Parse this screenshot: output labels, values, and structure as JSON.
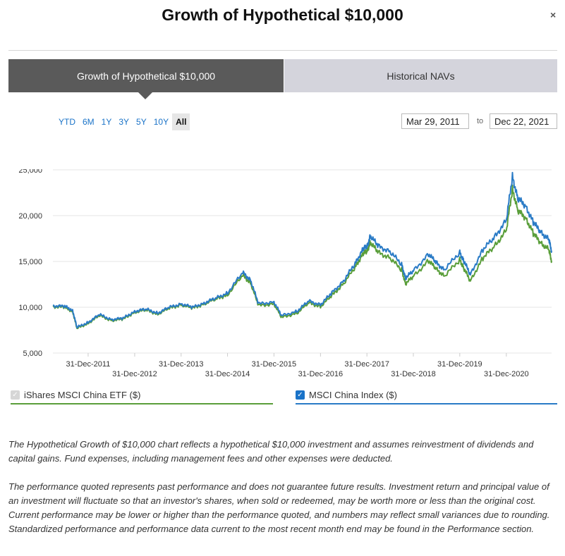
{
  "header": {
    "title": "Growth of Hypothetical $10,000",
    "close_label": "×"
  },
  "tabs": [
    {
      "label": "Growth of Hypothetical $10,000",
      "active": true
    },
    {
      "label": "Historical NAVs",
      "active": false
    }
  ],
  "time_ranges": [
    "YTD",
    "6M",
    "1Y",
    "3Y",
    "5Y",
    "10Y",
    "All"
  ],
  "selected_range": "All",
  "date_range": {
    "start": "Mar 29, 2011",
    "to_label": "to",
    "end": "Dec 22, 2021"
  },
  "legend": [
    {
      "label": "iShares MSCI China ETF ($)",
      "checked": true,
      "color": "#5a9e3a"
    },
    {
      "label": "MSCI China Index ($)",
      "checked": true,
      "color": "#2a7bc6"
    }
  ],
  "notes": [
    "The Hypothetical Growth of $10,000 chart reflects a hypothetical $10,000 investment and assumes reinvestment of dividends and capital gains. Fund expenses, including management fees and other expenses were deducted.",
    "The performance quoted represents past performance and does not guarantee future results. Investment return and principal value of an investment will fluctuate so that an investor's shares, when sold or redeemed, may be worth more or less than the original cost. Current performance may be lower or higher than the performance quoted, and numbers may reflect small variances due to rounding. Standardized performance and performance data current to the most recent month end may be found in the Performance section."
  ],
  "chart_data": {
    "type": "line",
    "x_start": "2011-03-29",
    "x_end": "2021-12-22",
    "ylim": [
      5000,
      25000
    ],
    "y_ticks": [
      "5,000",
      "10,000",
      "15,000",
      "20,000",
      "25,000"
    ],
    "x_ticks": [
      "31-Dec-2011",
      "31-Dec-2012",
      "31-Dec-2013",
      "31-Dec-2014",
      "31-Dec-2015",
      "31-Dec-2016",
      "31-Dec-2017",
      "31-Dec-2018",
      "31-Dec-2019",
      "31-Dec-2020"
    ],
    "grid": true,
    "x": [
      "2011-03-29",
      "2011-06-30",
      "2011-08-31",
      "2011-10-04",
      "2011-12-31",
      "2012-03-31",
      "2012-06-30",
      "2012-09-30",
      "2012-12-31",
      "2013-03-31",
      "2013-06-30",
      "2013-09-30",
      "2013-12-31",
      "2014-03-31",
      "2014-06-30",
      "2014-09-30",
      "2014-12-31",
      "2015-04-30",
      "2015-06-30",
      "2015-08-31",
      "2015-12-31",
      "2016-02-29",
      "2016-06-30",
      "2016-09-30",
      "2016-12-31",
      "2017-03-31",
      "2017-06-30",
      "2017-09-30",
      "2017-11-30",
      "2017-12-31",
      "2018-01-26",
      "2018-03-31",
      "2018-06-30",
      "2018-09-30",
      "2018-10-31",
      "2018-12-31",
      "2019-04-30",
      "2019-06-30",
      "2019-08-31",
      "2019-12-31",
      "2020-01-31",
      "2020-03-23",
      "2020-06-30",
      "2020-09-30",
      "2020-12-31",
      "2021-02-17",
      "2021-03-31",
      "2021-05-31",
      "2021-07-31",
      "2021-09-30",
      "2021-11-30",
      "2021-12-22"
    ],
    "series": [
      {
        "name": "iShares MSCI China ETF ($)",
        "color": "#5a9e3a",
        "values": [
          10000,
          9900,
          9500,
          7600,
          8200,
          9000,
          8500,
          8600,
          9400,
          9600,
          9200,
          9800,
          10200,
          9800,
          10300,
          10800,
          11300,
          13400,
          12600,
          10100,
          10300,
          8800,
          9300,
          10400,
          10000,
          11200,
          12500,
          14300,
          15800,
          16000,
          17000,
          15900,
          15300,
          14000,
          12500,
          13300,
          15000,
          14100,
          13300,
          15100,
          14200,
          12800,
          15300,
          16600,
          18300,
          22800,
          20500,
          19700,
          18000,
          16900,
          16200,
          15000
        ]
      },
      {
        "name": "MSCI China Index ($)",
        "color": "#2a7bc6",
        "values": [
          10100,
          10000,
          9600,
          7700,
          8300,
          9100,
          8600,
          8700,
          9500,
          9700,
          9300,
          9900,
          10300,
          9900,
          10400,
          10900,
          11500,
          13700,
          12900,
          10300,
          10500,
          9000,
          9500,
          10600,
          10200,
          11500,
          12800,
          14700,
          16300,
          16500,
          17700,
          16600,
          16000,
          14600,
          13100,
          13900,
          15700,
          14800,
          14000,
          15900,
          15000,
          13500,
          16200,
          17600,
          19400,
          24200,
          21800,
          21000,
          19200,
          18100,
          17300,
          16100
        ]
      }
    ]
  }
}
